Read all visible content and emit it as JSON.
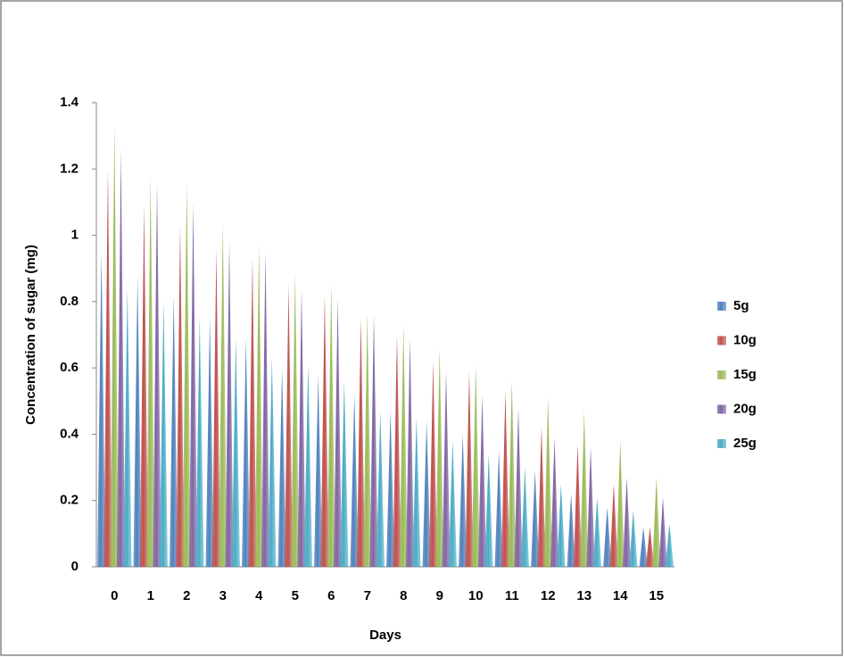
{
  "chart_data": {
    "type": "bar",
    "x_label": "Days",
    "y_label": "Concentration of sugar (mg)",
    "categories": [
      "0",
      "1",
      "2",
      "3",
      "4",
      "5",
      "6",
      "7",
      "8",
      "9",
      "10",
      "11",
      "12",
      "13",
      "14",
      "15"
    ],
    "series": [
      {
        "name": "5g",
        "color": "#4a7ebb",
        "values": [
          0.95,
          0.88,
          0.82,
          0.75,
          0.69,
          0.6,
          0.58,
          0.52,
          0.47,
          0.44,
          0.4,
          0.35,
          0.29,
          0.22,
          0.18,
          0.12
        ]
      },
      {
        "name": "10g",
        "color": "#be4b48",
        "values": [
          1.2,
          1.09,
          1.03,
          0.96,
          0.93,
          0.85,
          0.82,
          0.75,
          0.7,
          0.62,
          0.59,
          0.53,
          0.42,
          0.37,
          0.25,
          0.12
        ]
      },
      {
        "name": "15g",
        "color": "#98b954",
        "values": [
          1.33,
          1.18,
          1.16,
          1.04,
          0.97,
          0.89,
          0.85,
          0.77,
          0.73,
          0.66,
          0.61,
          0.56,
          0.51,
          0.47,
          0.38,
          0.27
        ]
      },
      {
        "name": "20g",
        "color": "#7d60a0",
        "values": [
          1.26,
          1.16,
          1.1,
          0.98,
          0.95,
          0.84,
          0.81,
          0.76,
          0.69,
          0.59,
          0.52,
          0.48,
          0.39,
          0.36,
          0.27,
          0.21
        ]
      },
      {
        "name": "25g",
        "color": "#46aac5",
        "values": [
          0.84,
          0.8,
          0.75,
          0.69,
          0.63,
          0.61,
          0.56,
          0.47,
          0.45,
          0.38,
          0.34,
          0.3,
          0.25,
          0.21,
          0.17,
          0.13
        ]
      }
    ],
    "ylim": [
      0,
      1.4
    ],
    "yticks": [
      0,
      0.2,
      0.4,
      0.6,
      0.8,
      1,
      1.2,
      1.4
    ],
    "grid": false,
    "legend": "right"
  }
}
